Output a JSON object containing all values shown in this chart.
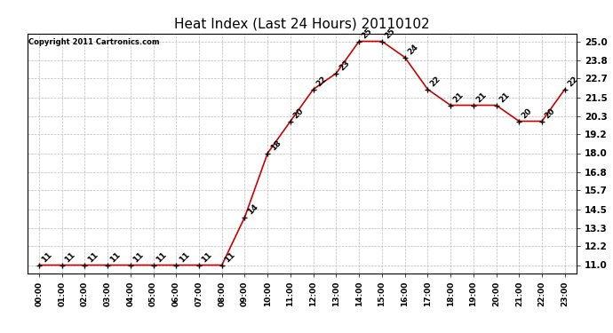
{
  "title": "Heat Index (Last 24 Hours) 20110102",
  "copyright": "Copyright 2011 Cartronics.com",
  "hours": [
    "00:00",
    "01:00",
    "02:00",
    "03:00",
    "04:00",
    "05:00",
    "06:00",
    "07:00",
    "08:00",
    "09:00",
    "10:00",
    "11:00",
    "12:00",
    "13:00",
    "14:00",
    "15:00",
    "16:00",
    "17:00",
    "18:00",
    "19:00",
    "20:00",
    "21:00",
    "22:00",
    "23:00"
  ],
  "values": [
    11,
    11,
    11,
    11,
    11,
    11,
    11,
    11,
    11,
    14,
    18,
    20,
    22,
    23,
    25,
    25,
    24,
    22,
    21,
    21,
    21,
    20,
    20,
    22
  ],
  "line_color": "#cc0000",
  "marker_color": "#000000",
  "bg_color": "#ffffff",
  "grid_color": "#bbbbbb",
  "yticks": [
    11.0,
    12.2,
    13.3,
    14.5,
    15.7,
    16.8,
    18.0,
    19.2,
    20.3,
    21.5,
    22.7,
    23.8,
    25.0
  ],
  "ylim": [
    10.5,
    25.5
  ],
  "title_fontsize": 11,
  "label_fontsize": 6.5,
  "annotation_fontsize": 6.5,
  "copyright_fontsize": 6
}
